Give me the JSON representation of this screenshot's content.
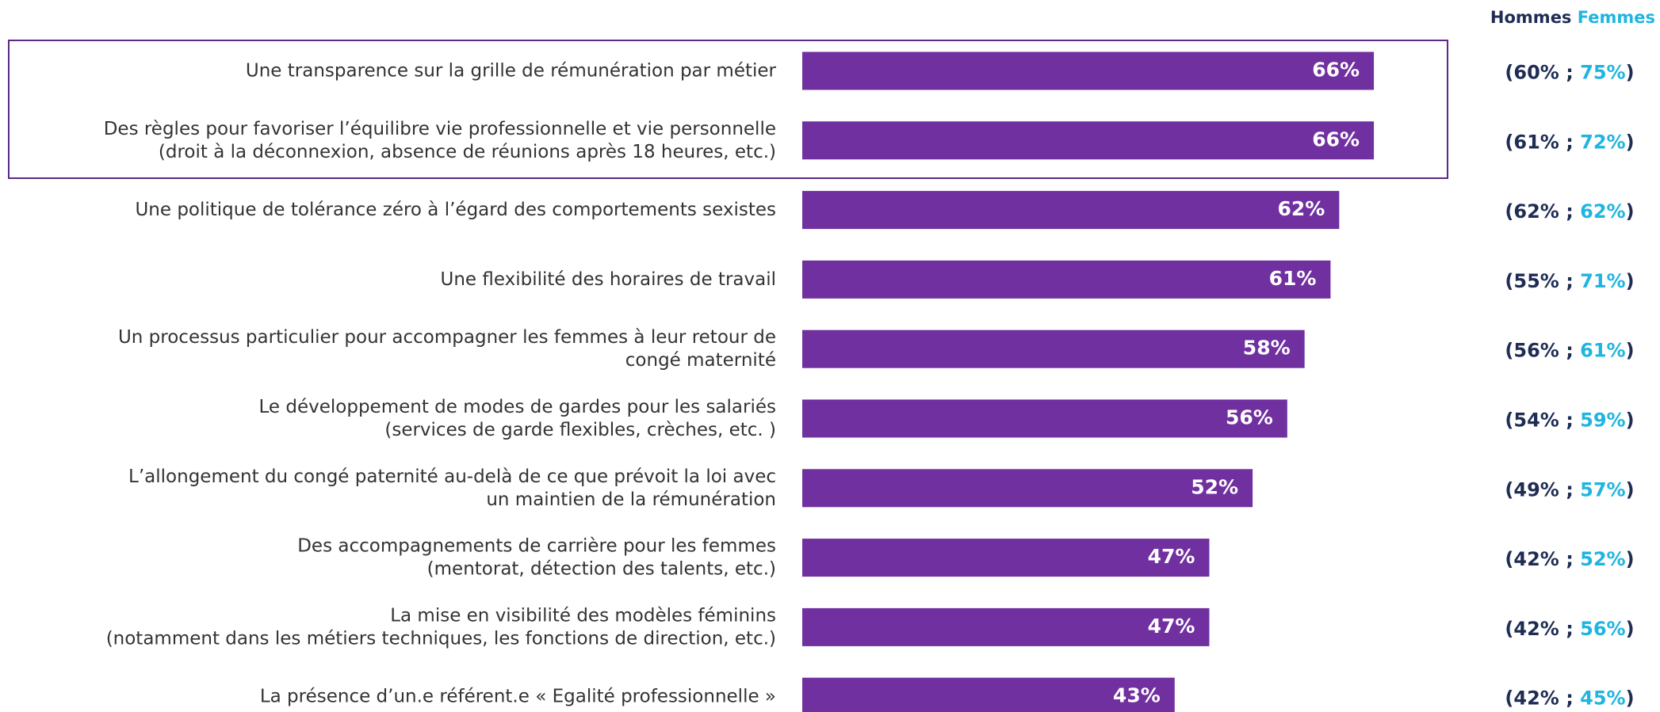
{
  "chart_data": {
    "type": "bar",
    "orientation": "horizontal",
    "categories": [
      [
        "Une transparence sur la grille de rémunération par métier"
      ],
      [
        "Des règles pour favoriser l’équilibre vie professionnelle et vie personnelle",
        "(droit à la déconnexion, absence de réunions après 18 heures, etc.)"
      ],
      [
        "Une politique de tolérance zéro à l’égard des comportements sexistes"
      ],
      [
        "Une flexibilité des horaires de travail"
      ],
      [
        "Un processus particulier pour accompagner les femmes à leur retour de",
        "congé maternité"
      ],
      [
        "Le développement de modes de gardes pour les salariés",
        "(services de garde flexibles, crèches, etc. )"
      ],
      [
        "L’allongement du congé paternité au-delà de ce que prévoit la loi avec",
        "un maintien de la rémunération"
      ],
      [
        "Des accompagnements de carrière pour les femmes",
        "(mentorat, détection des talents, etc.)"
      ],
      [
        "La mise en visibilité des modèles féminins",
        "(notamment dans les métiers techniques, les fonctions de direction, etc.)"
      ],
      [
        "La présence d’un.e référent.e « Egalité professionnelle »"
      ]
    ],
    "values": [
      66,
      66,
      62,
      61,
      58,
      56,
      52,
      47,
      47,
      43
    ],
    "value_labels": [
      "66%",
      "66%",
      "62%",
      "61%",
      "58%",
      "56%",
      "52%",
      "47%",
      "47%",
      "43%"
    ],
    "color": "#7030a0",
    "breakdown": [
      {
        "name": "Hommes",
        "color": "#1f2d54",
        "values": [
          60,
          61,
          62,
          55,
          56,
          54,
          49,
          42,
          42,
          42
        ],
        "value_labels": [
          "60%",
          "61%",
          "62%",
          "55%",
          "56%",
          "54%",
          "49%",
          "42%",
          "42%",
          "42%"
        ]
      },
      {
        "name": "Femmes",
        "color": "#1fb5e0",
        "values": [
          75,
          72,
          62,
          71,
          61,
          59,
          57,
          52,
          56,
          45
        ],
        "value_labels": [
          "75%",
          "72%",
          "62%",
          "71%",
          "61%",
          "59%",
          "57%",
          "52%",
          "56%",
          "45%"
        ]
      }
    ]
  }
}
